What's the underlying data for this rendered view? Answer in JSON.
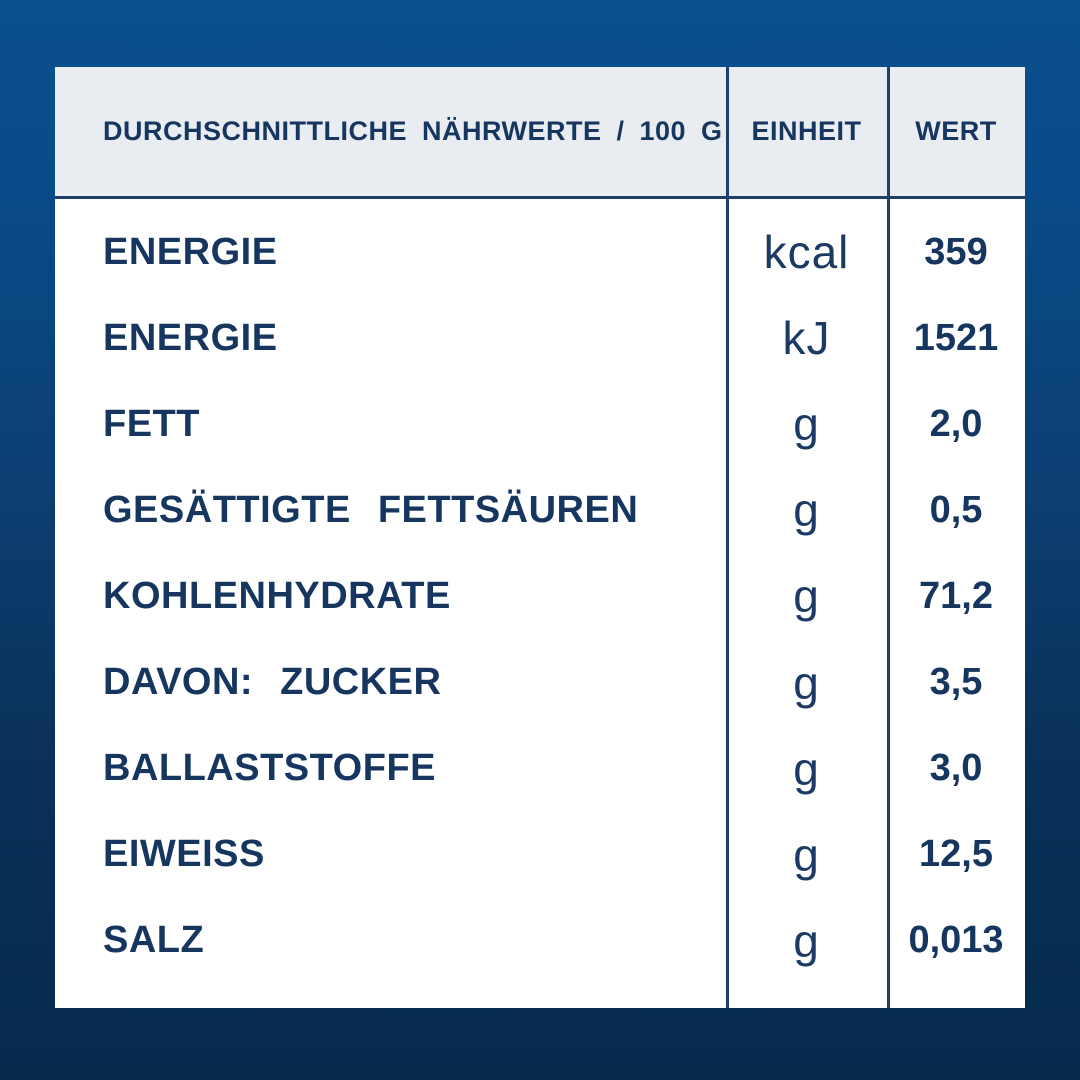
{
  "table": {
    "header": {
      "nutrients": "DURCHSCHNITTLICHE NÄHRWERTE / 100 G",
      "unit": "EINHEIT",
      "value": "WERT"
    },
    "rows": [
      {
        "label": "ENERGIE",
        "unit": "kcal",
        "value": "359"
      },
      {
        "label": "ENERGIE",
        "unit": "kJ",
        "value": "1521"
      },
      {
        "label": "FETT",
        "unit": "g",
        "value": "2,0"
      },
      {
        "label": "GESÄTTIGTE FETTSÄUREN",
        "unit": "g",
        "value": "0,5"
      },
      {
        "label": "KOHLENHYDRATE",
        "unit": "g",
        "value": "71,2"
      },
      {
        "label": "DAVON: ZUCKER",
        "unit": "g",
        "value": "3,5"
      },
      {
        "label": "BALLASTSTOFFE",
        "unit": "g",
        "value": "3,0"
      },
      {
        "label": "EIWEISS",
        "unit": "g",
        "value": "12,5"
      },
      {
        "label": "SALZ",
        "unit": "g",
        "value": "0,013"
      }
    ]
  },
  "colors": {
    "background_top": "#0a508e",
    "background_bottom": "#052a4c",
    "card": "#ffffff",
    "header_bg": "#e9ecf1",
    "text": "#16365f",
    "text_light": "#1c3a63",
    "divider": "#1e3f69"
  }
}
